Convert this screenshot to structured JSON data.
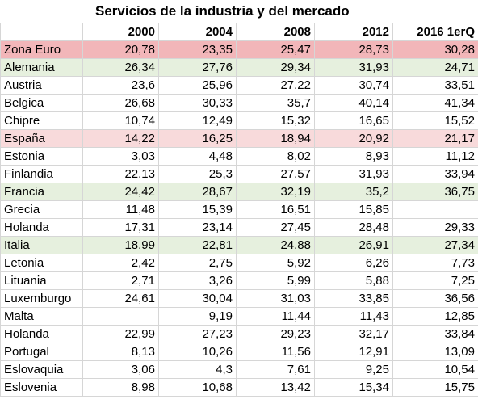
{
  "title": "Servicios de la industria y del mercado",
  "columns": [
    "",
    "2000",
    "2004",
    "2008",
    "2012",
    "2016 1erQ"
  ],
  "highlight_colors": {
    "red": "#f2b6b9",
    "pink": "#f8dadb",
    "green": "#e6f0de"
  },
  "rows": [
    {
      "name": "Zona Euro",
      "values": [
        "20,78",
        "23,35",
        "25,47",
        "28,73",
        "30,28"
      ],
      "highlight": "red"
    },
    {
      "name": "Alemania",
      "values": [
        "26,34",
        "27,76",
        "29,34",
        "31,93",
        "24,71"
      ],
      "highlight": "green"
    },
    {
      "name": "Austria",
      "values": [
        "23,6",
        "25,96",
        "27,22",
        "30,74",
        "33,51"
      ],
      "highlight": ""
    },
    {
      "name": "Belgica",
      "values": [
        "26,68",
        "30,33",
        "35,7",
        "40,14",
        "41,34"
      ],
      "highlight": ""
    },
    {
      "name": "Chipre",
      "values": [
        "10,74",
        "12,49",
        "15,32",
        "16,65",
        "15,52"
      ],
      "highlight": ""
    },
    {
      "name": "España",
      "values": [
        "14,22",
        "16,25",
        "18,94",
        "20,92",
        "21,17"
      ],
      "highlight": "pink"
    },
    {
      "name": "Estonia",
      "values": [
        "3,03",
        "4,48",
        "8,02",
        "8,93",
        "11,12"
      ],
      "highlight": ""
    },
    {
      "name": "Finlandia",
      "values": [
        "22,13",
        "25,3",
        "27,57",
        "31,93",
        "33,94"
      ],
      "highlight": ""
    },
    {
      "name": "Francia",
      "values": [
        "24,42",
        "28,67",
        "32,19",
        "35,2",
        "36,75"
      ],
      "highlight": "green"
    },
    {
      "name": "Grecia",
      "values": [
        "11,48",
        "15,39",
        "16,51",
        "15,85",
        ""
      ],
      "highlight": ""
    },
    {
      "name": "Holanda",
      "values": [
        "17,31",
        "23,14",
        "27,45",
        "28,48",
        "29,33"
      ],
      "highlight": ""
    },
    {
      "name": "Italia",
      "values": [
        "18,99",
        "22,81",
        "24,88",
        "26,91",
        "27,34"
      ],
      "highlight": "green"
    },
    {
      "name": "Letonia",
      "values": [
        "2,42",
        "2,75",
        "5,92",
        "6,26",
        "7,73"
      ],
      "highlight": ""
    },
    {
      "name": "Lituania",
      "values": [
        "2,71",
        "3,26",
        "5,99",
        "5,88",
        "7,25"
      ],
      "highlight": ""
    },
    {
      "name": "Luxemburgo",
      "values": [
        "24,61",
        "30,04",
        "31,03",
        "33,85",
        "36,56"
      ],
      "highlight": ""
    },
    {
      "name": "Malta",
      "values": [
        "",
        "9,19",
        "11,44",
        "11,43",
        "12,85"
      ],
      "highlight": ""
    },
    {
      "name": "Holanda",
      "values": [
        "22,99",
        "27,23",
        "29,23",
        "32,17",
        "33,84"
      ],
      "highlight": ""
    },
    {
      "name": "Portugal",
      "values": [
        "8,13",
        "10,26",
        "11,56",
        "12,91",
        "13,09"
      ],
      "highlight": ""
    },
    {
      "name": "Eslovaquia",
      "values": [
        "3,06",
        "4,3",
        "7,61",
        "9,25",
        "10,54"
      ],
      "highlight": ""
    },
    {
      "name": "Eslovenia",
      "values": [
        "8,98",
        "10,68",
        "13,42",
        "15,34",
        "15,75"
      ],
      "highlight": ""
    }
  ]
}
